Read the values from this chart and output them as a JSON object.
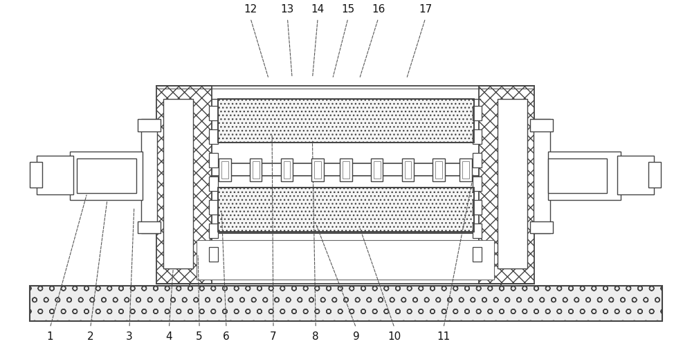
{
  "bg_color": "#ffffff",
  "ec": "#444444",
  "fig_width": 10,
  "fig_height": 5,
  "dpi": 100,
  "labels_top": [
    [
      "1",
      60,
      14,
      115,
      220
    ],
    [
      "2",
      120,
      14,
      145,
      210
    ],
    [
      "3",
      178,
      14,
      185,
      200
    ],
    [
      "4",
      237,
      14,
      248,
      180
    ],
    [
      "5",
      282,
      14,
      280,
      130
    ],
    [
      "6",
      322,
      14,
      315,
      195
    ],
    [
      "7",
      392,
      14,
      390,
      310
    ],
    [
      "8",
      455,
      14,
      450,
      300
    ],
    [
      "9",
      515,
      14,
      455,
      175
    ],
    [
      "10",
      572,
      14,
      520,
      170
    ],
    [
      "11",
      645,
      14,
      690,
      250
    ]
  ],
  "labels_bot": [
    [
      "12",
      358,
      486,
      385,
      390
    ],
    [
      "13",
      413,
      486,
      420,
      390
    ],
    [
      "14",
      458,
      486,
      450,
      390
    ],
    [
      "15",
      503,
      486,
      480,
      390
    ],
    [
      "16",
      548,
      486,
      520,
      390
    ],
    [
      "17",
      618,
      486,
      590,
      390
    ]
  ]
}
